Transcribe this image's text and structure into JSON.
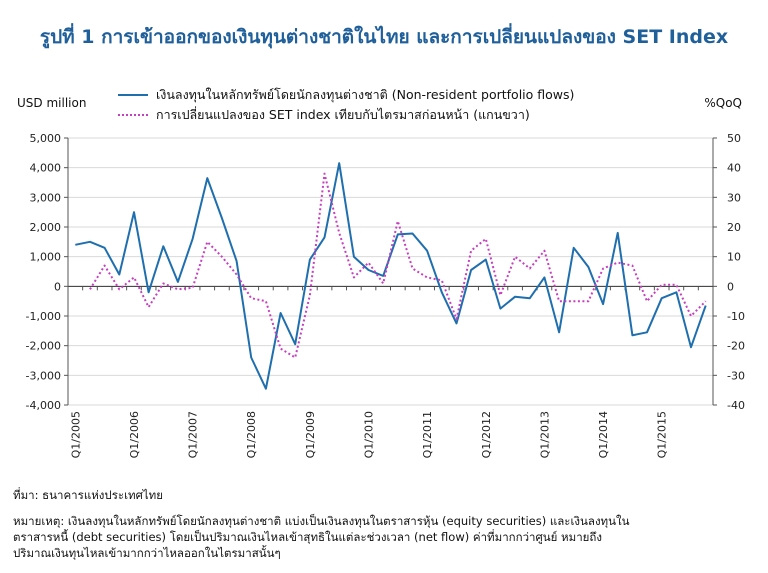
{
  "header": {
    "title": "รูปที่ 1 การเข้าออกของเงินทุนต่างชาติในไทย และการเปลี่ยนแปลงของ SET Index",
    "left_unit": "USD million",
    "right_unit": "%QoQ"
  },
  "footer": {
    "source": "ที่มา: ธนาคารแห่งประเทศไทย",
    "note_lines": [
      "หมายเหตุ: เงินลงทุนในหลักทรัพย์โดยนักลงทุนต่างชาติ แบ่งเป็นเงินลงทุนในตราสารหุ้น (equity securities) และเงินลงทุนใน",
      "ตราสารหนี้ (debt securities)  โดยเป็นปริมาณเงินไหลเข้าสุทธิในแต่ละช่วงเวลา (net flow)  ค่าที่มากกว่าศูนย์ หมายถึง",
      "ปริมาณเงินทุนไหลเข้ามากกว่าไหลออกในไตรมาสนั้นๆ"
    ]
  },
  "colors": {
    "flows": "#1f6fae",
    "set": "#c63fc0",
    "grid": "#d9d9d9"
  },
  "chart_data": {
    "type": "line",
    "title": "รูปที่ 1 การเข้าออกของเงินทุนต่างชาติในไทย และการเปลี่ยนแปลงของ SET Index",
    "x_tick_labels": [
      "Q1/2005",
      "Q1/2006",
      "Q1/2007",
      "Q1/2008",
      "Q1/2009",
      "Q1/2010",
      "Q1/2011",
      "Q1/2012",
      "Q1/2013",
      "Q1/2014",
      "Q1/2015"
    ],
    "quarters": [
      "Q1/2005",
      "Q2/2005",
      "Q3/2005",
      "Q4/2005",
      "Q1/2006",
      "Q2/2006",
      "Q3/2006",
      "Q4/2006",
      "Q1/2007",
      "Q2/2007",
      "Q3/2007",
      "Q4/2007",
      "Q1/2008",
      "Q2/2008",
      "Q3/2008",
      "Q4/2008",
      "Q1/2009",
      "Q2/2009",
      "Q3/2009",
      "Q4/2009",
      "Q1/2010",
      "Q2/2010",
      "Q3/2010",
      "Q4/2010",
      "Q1/2011",
      "Q2/2011",
      "Q3/2011",
      "Q4/2011",
      "Q1/2012",
      "Q2/2012",
      "Q3/2012",
      "Q4/2012",
      "Q1/2013",
      "Q2/2013",
      "Q3/2013",
      "Q4/2013",
      "Q1/2014",
      "Q2/2014",
      "Q3/2014",
      "Q4/2014",
      "Q1/2015",
      "Q2/2015",
      "Q3/2015",
      "Q4/2015"
    ],
    "y_left": {
      "label": "USD million",
      "min": -4000,
      "max": 5000,
      "ticks": [
        -4000,
        -3000,
        -2000,
        -1000,
        0,
        1000,
        2000,
        3000,
        4000,
        5000
      ],
      "tick_labels": [
        "-4,000",
        "-3,000",
        "-2,000",
        "-1,000",
        "0",
        "1,000",
        "2,000",
        "3,000",
        "4,000",
        "5,000"
      ]
    },
    "y_right": {
      "label": "%QoQ",
      "min": -40,
      "max": 50,
      "ticks": [
        -40,
        -30,
        -20,
        -10,
        0,
        10,
        20,
        30,
        40,
        50
      ],
      "tick_labels": [
        "-40",
        "-30",
        "-20",
        "-10",
        "0",
        "10",
        "20",
        "30",
        "40",
        "50"
      ]
    },
    "grid": true,
    "legend_position": "top",
    "series": [
      {
        "name": "เงินลงทุนในหลักทรัพย์โดยนักลงทุนต่างชาติ (Non-resident portfolio flows)",
        "axis": "left",
        "style": "solid",
        "x_start": 0,
        "values": [
          1400,
          1500,
          1300,
          400,
          2500,
          -200,
          1350,
          150,
          1600,
          3650,
          2300,
          850,
          -2400,
          -3450,
          -900,
          -1950,
          900,
          1650,
          4150,
          1000,
          550,
          350,
          1750,
          1780,
          1200,
          -200,
          -1250,
          550,
          900,
          -750,
          -350,
          -400,
          300,
          -1550,
          1300,
          650,
          -600,
          1800,
          -1650,
          -1550,
          -400,
          -200,
          -2050,
          -650
        ]
      },
      {
        "name": "การเปลี่ยนแปลงของ SET index เทียบกับไตรมาสก่อนหน้า (แกนขวา)",
        "axis": "right",
        "style": "dotted",
        "x_start": 1,
        "values": [
          -1,
          7,
          -1,
          3,
          -7,
          1,
          -1,
          -0.5,
          15,
          10,
          4,
          -4,
          -5,
          -21,
          -24,
          -3,
          38,
          18,
          3,
          8,
          1,
          22,
          6,
          3,
          2,
          -11,
          12,
          16,
          -3,
          10,
          6,
          12,
          -5,
          -5,
          -5,
          6,
          8,
          7,
          -5,
          0.5,
          0.5,
          -10,
          -5
        ]
      }
    ]
  }
}
